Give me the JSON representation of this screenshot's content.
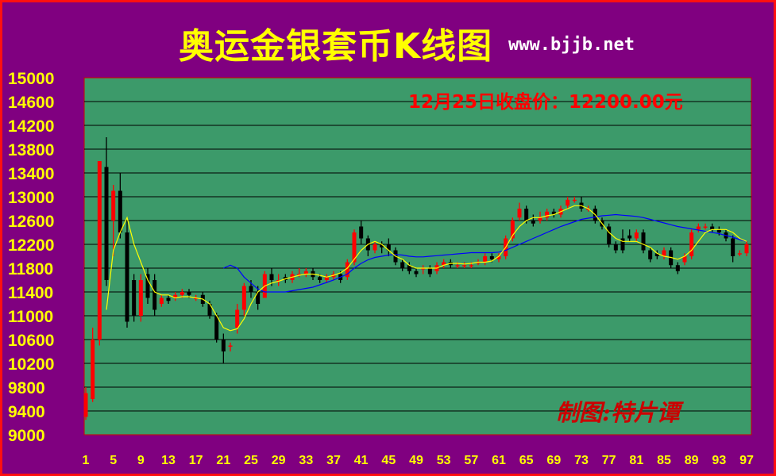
{
  "header": {
    "title": "奥运金银套币K线图",
    "site": "www.bjjb.net"
  },
  "colors": {
    "background": "#800080",
    "plot": "#3c9a6a",
    "up": "#ff0000",
    "down": "#000000",
    "ma_short": "#ffff00",
    "ma_long": "#0000ff",
    "axis_text": "#ffff00",
    "annotation": "#ff0000",
    "signature": "#cc0000"
  },
  "chart_data": {
    "type": "candlestick",
    "ylim": [
      9000,
      15000
    ],
    "yticks": [
      9000,
      9400,
      9800,
      10200,
      10600,
      11000,
      11400,
      11800,
      12200,
      12600,
      13000,
      13400,
      13800,
      14200,
      14600,
      15000
    ],
    "xlim": [
      1,
      97
    ],
    "xticks": [
      1,
      5,
      9,
      13,
      17,
      21,
      25,
      29,
      33,
      37,
      41,
      45,
      49,
      53,
      57,
      61,
      65,
      69,
      73,
      77,
      81,
      85,
      89,
      93,
      97
    ],
    "grid": true,
    "annotation": "12月25日收盘价：12200.00元",
    "signature": "制图:特片谭",
    "candles": [
      [
        1,
        9300,
        9700,
        9250,
        9800
      ],
      [
        2,
        9600,
        10600,
        9550,
        10800
      ],
      [
        3,
        10600,
        13600,
        10500,
        13600
      ],
      [
        4,
        13500,
        11600,
        11500,
        14000
      ],
      [
        5,
        12600,
        13100,
        12000,
        13200
      ],
      [
        6,
        13100,
        12400,
        12300,
        13400
      ],
      [
        7,
        12400,
        10900,
        10800,
        12600
      ],
      [
        8,
        11600,
        11000,
        10900,
        11700
      ],
      [
        9,
        11000,
        11600,
        10900,
        11700
      ],
      [
        10,
        11700,
        11300,
        11200,
        11800
      ],
      [
        11,
        11600,
        11100,
        11000,
        11700
      ],
      [
        12,
        11200,
        11300,
        11150,
        11350
      ],
      [
        13,
        11300,
        11250,
        11200,
        11350
      ],
      [
        14,
        11300,
        11350,
        11250,
        11400
      ],
      [
        15,
        11350,
        11400,
        11300,
        11450
      ],
      [
        16,
        11400,
        11350,
        11300,
        11450
      ],
      [
        17,
        11300,
        11300,
        11250,
        11350
      ],
      [
        18,
        11350,
        11200,
        11150,
        11400
      ],
      [
        19,
        11200,
        11000,
        10950,
        11250
      ],
      [
        20,
        11000,
        10600,
        10550,
        11050
      ],
      [
        21,
        10600,
        10400,
        10200,
        10700
      ],
      [
        22,
        10500,
        10500,
        10400,
        10550
      ],
      [
        23,
        10800,
        11100,
        10700,
        11200
      ],
      [
        24,
        11100,
        11500,
        11000,
        11550
      ],
      [
        25,
        11500,
        11400,
        11300,
        11600
      ],
      [
        26,
        11400,
        11200,
        11100,
        11500
      ],
      [
        27,
        11300,
        11700,
        11300,
        11750
      ],
      [
        28,
        11700,
        11600,
        11500,
        11800
      ],
      [
        29,
        11600,
        11600,
        11500,
        11700
      ],
      [
        30,
        11650,
        11600,
        11550,
        11700
      ],
      [
        31,
        11600,
        11700,
        11550,
        11750
      ],
      [
        32,
        11700,
        11700,
        11650,
        11800
      ],
      [
        33,
        11700,
        11750,
        11650,
        11800
      ],
      [
        34,
        11750,
        11650,
        11600,
        11800
      ],
      [
        35,
        11650,
        11600,
        11550,
        11700
      ],
      [
        36,
        11600,
        11650,
        11550,
        11700
      ],
      [
        37,
        11650,
        11700,
        11600,
        11750
      ],
      [
        38,
        11700,
        11600,
        11550,
        11750
      ],
      [
        39,
        11650,
        11900,
        11600,
        11950
      ],
      [
        40,
        11900,
        12400,
        11850,
        12450
      ],
      [
        41,
        12500,
        12300,
        12200,
        12600
      ],
      [
        42,
        12300,
        12100,
        12000,
        12350
      ],
      [
        43,
        12100,
        12200,
        12050,
        12250
      ],
      [
        44,
        12200,
        12150,
        12050,
        12250
      ],
      [
        45,
        12200,
        12100,
        12000,
        12300
      ],
      [
        46,
        12100,
        11900,
        11850,
        12150
      ],
      [
        47,
        11900,
        11800,
        11750,
        11950
      ],
      [
        48,
        11850,
        11750,
        11700,
        11900
      ],
      [
        49,
        11750,
        11700,
        11650,
        11800
      ],
      [
        50,
        11800,
        11800,
        11700,
        11850
      ],
      [
        51,
        11800,
        11700,
        11650,
        11850
      ],
      [
        52,
        11750,
        11850,
        11700,
        11900
      ],
      [
        53,
        11850,
        11900,
        11800,
        11950
      ],
      [
        54,
        11900,
        11850,
        11800,
        11950
      ],
      [
        55,
        11850,
        11850,
        11800,
        11900
      ],
      [
        56,
        11850,
        11850,
        11800,
        11900
      ],
      [
        57,
        11850,
        11850,
        11800,
        11900
      ],
      [
        58,
        11900,
        11900,
        11850,
        11950
      ],
      [
        59,
        11900,
        12000,
        11850,
        12050
      ],
      [
        60,
        12000,
        11950,
        11900,
        12050
      ],
      [
        61,
        11950,
        12000,
        11900,
        12050
      ],
      [
        62,
        12000,
        12300,
        11950,
        12350
      ],
      [
        63,
        12300,
        12600,
        12250,
        12650
      ],
      [
        64,
        12650,
        12800,
        12600,
        12900
      ],
      [
        65,
        12800,
        12600,
        12550,
        12850
      ],
      [
        66,
        12600,
        12550,
        12500,
        12700
      ],
      [
        67,
        12600,
        12650,
        12550,
        12750
      ],
      [
        68,
        12650,
        12750,
        12600,
        12800
      ],
      [
        69,
        12750,
        12700,
        12650,
        12800
      ],
      [
        70,
        12700,
        12800,
        12650,
        12850
      ],
      [
        71,
        12850,
        12950,
        12800,
        13000
      ],
      [
        72,
        12950,
        12950,
        12900,
        13000
      ],
      [
        73,
        12900,
        12800,
        12750,
        13000
      ],
      [
        74,
        12800,
        12800,
        12750,
        12850
      ],
      [
        75,
        12800,
        12600,
        12550,
        12850
      ],
      [
        76,
        12600,
        12500,
        12450,
        12650
      ],
      [
        77,
        12500,
        12200,
        12150,
        12550
      ],
      [
        78,
        12200,
        12100,
        12050,
        12250
      ],
      [
        79,
        12300,
        12100,
        12050,
        12450
      ],
      [
        80,
        12350,
        12300,
        12250,
        12450
      ],
      [
        81,
        12300,
        12400,
        12250,
        12450
      ],
      [
        82,
        12400,
        12100,
        12050,
        12450
      ],
      [
        83,
        12100,
        11950,
        11900,
        12150
      ],
      [
        84,
        12050,
        12000,
        11950,
        12100
      ],
      [
        85,
        12000,
        12100,
        11950,
        12150
      ],
      [
        86,
        12100,
        11850,
        11800,
        12150
      ],
      [
        87,
        11850,
        11750,
        11700,
        11900
      ],
      [
        88,
        11900,
        12000,
        11850,
        12050
      ],
      [
        89,
        12000,
        12400,
        11950,
        12450
      ],
      [
        90,
        12450,
        12500,
        12400,
        12550
      ],
      [
        91,
        12500,
        12500,
        12450,
        12550
      ],
      [
        92,
        12500,
        12450,
        12400,
        12550
      ],
      [
        93,
        12450,
        12400,
        12350,
        12500
      ],
      [
        94,
        12400,
        12300,
        12250,
        12450
      ],
      [
        95,
        12300,
        12000,
        11900,
        12350
      ],
      [
        96,
        12050,
        12050,
        12000,
        12100
      ],
      [
        97,
        12050,
        12200,
        12000,
        12250
      ]
    ],
    "ma_short": [
      [
        4,
        11100
      ],
      [
        5,
        12100
      ],
      [
        6,
        12400
      ],
      [
        7,
        12650
      ],
      [
        8,
        12200
      ],
      [
        9,
        11900
      ],
      [
        10,
        11600
      ],
      [
        11,
        11400
      ],
      [
        12,
        11350
      ],
      [
        13,
        11350
      ],
      [
        14,
        11300
      ],
      [
        15,
        11320
      ],
      [
        16,
        11320
      ],
      [
        17,
        11300
      ],
      [
        18,
        11280
      ],
      [
        19,
        11200
      ],
      [
        20,
        11000
      ],
      [
        21,
        10800
      ],
      [
        22,
        10750
      ],
      [
        23,
        10780
      ],
      [
        24,
        10950
      ],
      [
        25,
        11200
      ],
      [
        26,
        11400
      ],
      [
        27,
        11500
      ],
      [
        28,
        11550
      ],
      [
        29,
        11580
      ],
      [
        30,
        11620
      ],
      [
        31,
        11650
      ],
      [
        32,
        11680
      ],
      [
        33,
        11700
      ],
      [
        34,
        11700
      ],
      [
        35,
        11680
      ],
      [
        36,
        11650
      ],
      [
        37,
        11680
      ],
      [
        38,
        11720
      ],
      [
        39,
        11800
      ],
      [
        40,
        11950
      ],
      [
        41,
        12100
      ],
      [
        42,
        12200
      ],
      [
        43,
        12250
      ],
      [
        44,
        12200
      ],
      [
        45,
        12100
      ],
      [
        46,
        12000
      ],
      [
        47,
        11950
      ],
      [
        48,
        11850
      ],
      [
        49,
        11800
      ],
      [
        50,
        11800
      ],
      [
        51,
        11800
      ],
      [
        52,
        11800
      ],
      [
        53,
        11850
      ],
      [
        54,
        11880
      ],
      [
        55,
        11880
      ],
      [
        56,
        11870
      ],
      [
        57,
        11880
      ],
      [
        58,
        11900
      ],
      [
        59,
        11900
      ],
      [
        60,
        11920
      ],
      [
        61,
        12000
      ],
      [
        62,
        12150
      ],
      [
        63,
        12350
      ],
      [
        64,
        12500
      ],
      [
        65,
        12600
      ],
      [
        66,
        12650
      ],
      [
        67,
        12650
      ],
      [
        68,
        12680
      ],
      [
        69,
        12700
      ],
      [
        70,
        12750
      ],
      [
        71,
        12800
      ],
      [
        72,
        12850
      ],
      [
        73,
        12850
      ],
      [
        74,
        12800
      ],
      [
        75,
        12700
      ],
      [
        76,
        12550
      ],
      [
        77,
        12400
      ],
      [
        78,
        12300
      ],
      [
        79,
        12250
      ],
      [
        80,
        12250
      ],
      [
        81,
        12250
      ],
      [
        82,
        12200
      ],
      [
        83,
        12150
      ],
      [
        84,
        12050
      ],
      [
        85,
        12000
      ],
      [
        86,
        11980
      ],
      [
        87,
        11950
      ],
      [
        88,
        12000
      ],
      [
        89,
        12100
      ],
      [
        90,
        12250
      ],
      [
        91,
        12400
      ],
      [
        92,
        12450
      ],
      [
        93,
        12450
      ],
      [
        94,
        12450
      ],
      [
        95,
        12400
      ],
      [
        96,
        12300
      ],
      [
        97,
        12250
      ]
    ],
    "ma_long": [
      [
        21,
        11800
      ],
      [
        22,
        11850
      ],
      [
        23,
        11800
      ],
      [
        24,
        11650
      ],
      [
        25,
        11550
      ],
      [
        26,
        11450
      ],
      [
        27,
        11400
      ],
      [
        28,
        11400
      ],
      [
        29,
        11400
      ],
      [
        30,
        11400
      ],
      [
        31,
        11420
      ],
      [
        32,
        11440
      ],
      [
        33,
        11460
      ],
      [
        34,
        11480
      ],
      [
        35,
        11520
      ],
      [
        36,
        11560
      ],
      [
        37,
        11600
      ],
      [
        38,
        11650
      ],
      [
        39,
        11700
      ],
      [
        40,
        11800
      ],
      [
        41,
        11880
      ],
      [
        42,
        11940
      ],
      [
        43,
        11980
      ],
      [
        44,
        12000
      ],
      [
        45,
        12020
      ],
      [
        46,
        12030
      ],
      [
        47,
        12020
      ],
      [
        48,
        12000
      ],
      [
        49,
        11990
      ],
      [
        50,
        11990
      ],
      [
        51,
        12000
      ],
      [
        52,
        12010
      ],
      [
        53,
        12020
      ],
      [
        54,
        12030
      ],
      [
        55,
        12040
      ],
      [
        56,
        12050
      ],
      [
        57,
        12060
      ],
      [
        58,
        12060
      ],
      [
        59,
        12060
      ],
      [
        60,
        12060
      ],
      [
        61,
        12070
      ],
      [
        62,
        12100
      ],
      [
        63,
        12150
      ],
      [
        64,
        12200
      ],
      [
        65,
        12250
      ],
      [
        66,
        12300
      ],
      [
        67,
        12350
      ],
      [
        68,
        12400
      ],
      [
        69,
        12450
      ],
      [
        70,
        12500
      ],
      [
        71,
        12540
      ],
      [
        72,
        12580
      ],
      [
        73,
        12620
      ],
      [
        74,
        12640
      ],
      [
        75,
        12660
      ],
      [
        76,
        12680
      ],
      [
        77,
        12690
      ],
      [
        78,
        12700
      ],
      [
        79,
        12690
      ],
      [
        80,
        12680
      ],
      [
        81,
        12670
      ],
      [
        82,
        12650
      ],
      [
        83,
        12620
      ],
      [
        84,
        12590
      ],
      [
        85,
        12560
      ],
      [
        86,
        12530
      ],
      [
        87,
        12500
      ],
      [
        88,
        12480
      ],
      [
        89,
        12460
      ],
      [
        90,
        12440
      ],
      [
        91,
        12420
      ],
      [
        92,
        12400
      ],
      [
        93,
        12380
      ],
      [
        94,
        12350
      ],
      [
        95,
        12320
      ],
      [
        96,
        12280
      ],
      [
        97,
        12250
      ]
    ]
  }
}
